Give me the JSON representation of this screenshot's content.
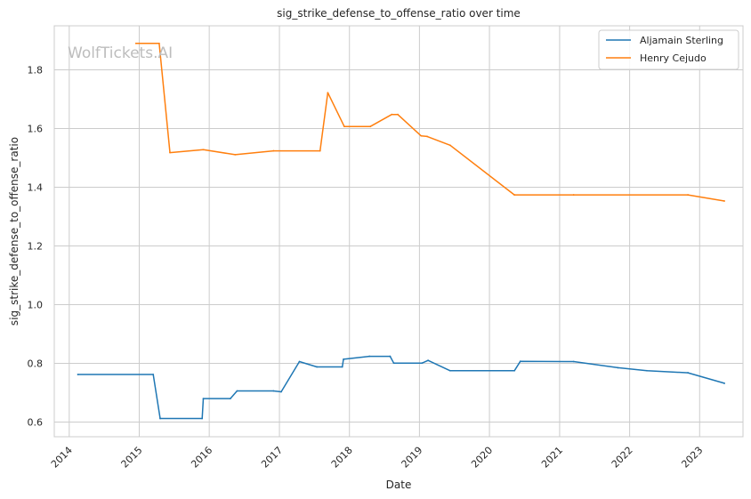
{
  "chart_data": {
    "type": "line",
    "title": "sig_strike_defense_to_offense_ratio over time",
    "xlabel": "Date",
    "ylabel": "sig_strike_defense_to_offense_ratio",
    "watermark": "WolfTickets.AI",
    "xlim": [
      "2013-10-15",
      "2023-08-15"
    ],
    "ylim": [
      0.55,
      1.95
    ],
    "x_ticks": [
      "2014",
      "2015",
      "2016",
      "2017",
      "2018",
      "2019",
      "2020",
      "2021",
      "2022",
      "2023"
    ],
    "y_ticks": [
      "0.6",
      "0.8",
      "1.0",
      "1.2",
      "1.4",
      "1.6",
      "1.8"
    ],
    "grid": true,
    "legend_position": "top-right",
    "series": [
      {
        "name": "Aljamain Sterling",
        "color": "#1f77b4",
        "points": [
          [
            "2014-02-15",
            0.762
          ],
          [
            "2015-03-15",
            0.762
          ],
          [
            "2015-04-20",
            0.612
          ],
          [
            "2015-11-25",
            0.612
          ],
          [
            "2015-12-01",
            0.68
          ],
          [
            "2016-04-20",
            0.68
          ],
          [
            "2016-05-25",
            0.706
          ],
          [
            "2016-12-01",
            0.706
          ],
          [
            "2017-01-10",
            0.703
          ],
          [
            "2017-04-15",
            0.806
          ],
          [
            "2017-07-15",
            0.788
          ],
          [
            "2017-11-25",
            0.788
          ],
          [
            "2017-12-01",
            0.814
          ],
          [
            "2018-04-15",
            0.824
          ],
          [
            "2018-08-01",
            0.824
          ],
          [
            "2018-08-20",
            0.801
          ],
          [
            "2019-01-15",
            0.801
          ],
          [
            "2019-02-15",
            0.81
          ],
          [
            "2019-06-10",
            0.775
          ],
          [
            "2020-05-10",
            0.775
          ],
          [
            "2020-06-10",
            0.807
          ],
          [
            "2021-03-15",
            0.806
          ],
          [
            "2021-11-01",
            0.785
          ],
          [
            "2022-04-01",
            0.775
          ],
          [
            "2022-11-01",
            0.768
          ],
          [
            "2023-05-10",
            0.732
          ]
        ]
      },
      {
        "name": "Henry Cejudo",
        "color": "#ff7f0e",
        "points": [
          [
            "2014-12-15",
            1.89
          ],
          [
            "2015-04-15",
            1.89
          ],
          [
            "2015-06-10",
            1.518
          ],
          [
            "2015-12-01",
            1.528
          ],
          [
            "2016-05-15",
            1.511
          ],
          [
            "2016-12-01",
            1.524
          ],
          [
            "2017-08-01",
            1.524
          ],
          [
            "2017-09-10",
            1.722
          ],
          [
            "2017-12-05",
            1.607
          ],
          [
            "2018-04-20",
            1.607
          ],
          [
            "2018-08-10",
            1.648
          ],
          [
            "2018-09-10",
            1.648
          ],
          [
            "2019-01-10",
            1.575
          ],
          [
            "2019-02-10",
            1.573
          ],
          [
            "2019-06-10",
            1.543
          ],
          [
            "2020-05-10",
            1.374
          ],
          [
            "2021-03-15",
            1.374
          ],
          [
            "2022-11-01",
            1.374
          ],
          [
            "2023-05-10",
            1.353
          ]
        ]
      }
    ]
  }
}
